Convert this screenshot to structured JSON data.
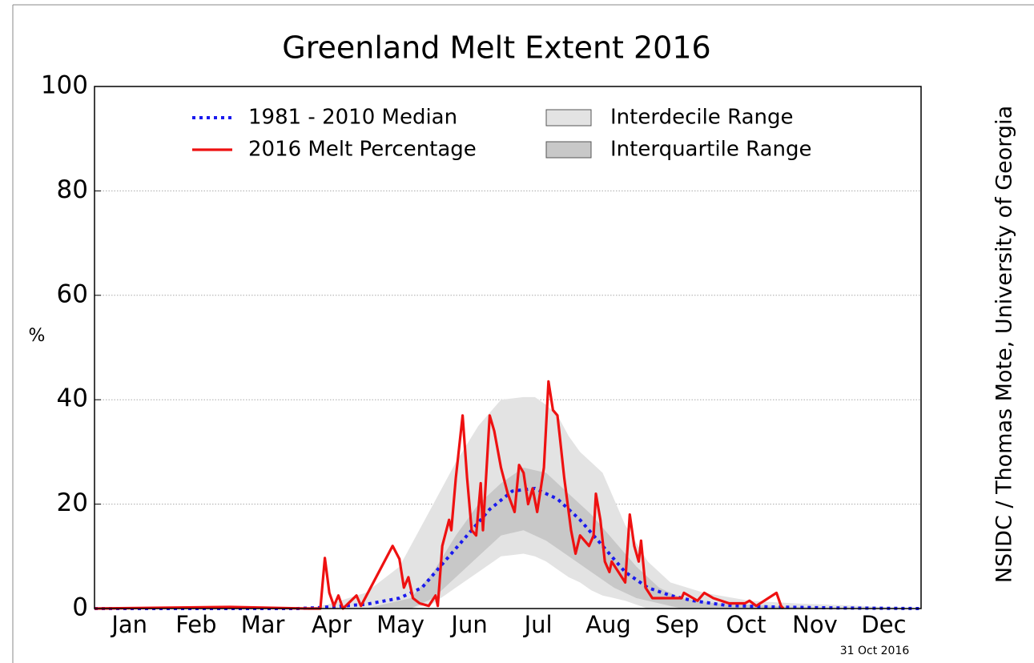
{
  "chart_data": {
    "type": "line",
    "title": "Greenland Melt Extent 2016",
    "y_label": "%",
    "credit": "NSIDC / Thomas Mote, University of Georgia",
    "date_note": "31 Oct 2016",
    "xlim": [
      0,
      366
    ],
    "xticks": [
      {
        "value": 15.5,
        "label": "Jan"
      },
      {
        "value": 45,
        "label": "Feb"
      },
      {
        "value": 74.5,
        "label": "Mar"
      },
      {
        "value": 105,
        "label": "Apr"
      },
      {
        "value": 135.5,
        "label": "May"
      },
      {
        "value": 166,
        "label": "Jun"
      },
      {
        "value": 196.5,
        "label": "Jul"
      },
      {
        "value": 227.5,
        "label": "Aug"
      },
      {
        "value": 258,
        "label": "Sep"
      },
      {
        "value": 288.5,
        "label": "Oct"
      },
      {
        "value": 319,
        "label": "Nov"
      },
      {
        "value": 349.5,
        "label": "Dec"
      }
    ],
    "ylim": [
      0,
      100
    ],
    "yticks": [
      0,
      20,
      40,
      60,
      80,
      100
    ],
    "grid": true,
    "series": [
      {
        "name": "Interdecile Range",
        "kind": "band",
        "color": "#e3e3e3",
        "x": [
          0,
          95,
          105,
          120,
          135,
          140,
          150,
          160,
          170,
          180,
          190,
          195,
          200,
          205,
          210,
          215,
          220,
          225,
          235,
          245,
          255,
          270,
          290,
          310,
          340,
          366
        ],
        "values": [
          0,
          0,
          1,
          3,
          8,
          12,
          20,
          28,
          35,
          40,
          40.5,
          40.5,
          39,
          37,
          33,
          30,
          28,
          26,
          16,
          9,
          5,
          3,
          1.5,
          1,
          0.5,
          0
        ],
        "lower": [
          0,
          0,
          0,
          0,
          0,
          0,
          1,
          4,
          7,
          10,
          10.5,
          10,
          9,
          7.5,
          6,
          5,
          3.5,
          2.5,
          1.5,
          0,
          0,
          0,
          0,
          0,
          0,
          0
        ]
      },
      {
        "name": "Interquartile Range",
        "kind": "band",
        "color": "#c8c8c8",
        "x": [
          0,
          120,
          140,
          150,
          160,
          170,
          180,
          190,
          200,
          210,
          220,
          230,
          240,
          250,
          260,
          275,
          300,
          330,
          366
        ],
        "values": [
          0,
          0,
          2,
          7,
          14,
          20,
          24,
          27,
          26,
          22,
          18,
          13,
          8,
          4,
          2,
          1,
          0.5,
          0,
          0
        ],
        "lower": [
          0,
          0,
          0,
          2,
          6,
          10,
          14,
          15,
          13,
          10,
          7,
          4,
          2,
          1,
          0,
          0,
          0,
          0,
          0
        ]
      },
      {
        "name": "1981 - 2010 Median",
        "kind": "dotted",
        "color": "#1a1aee",
        "x": [
          0,
          90,
          100,
          120,
          135,
          145,
          155,
          165,
          175,
          185,
          195,
          205,
          215,
          225,
          235,
          245,
          255,
          265,
          280,
          300,
          330,
          366
        ],
        "values": [
          0,
          0,
          0.2,
          0.8,
          2,
          4,
          9,
          14,
          19,
          22.5,
          23,
          21,
          17,
          12,
          7,
          4,
          2.5,
          1.5,
          0.6,
          0.3,
          0.1,
          0
        ]
      },
      {
        "name": "2016 Melt Percentage",
        "kind": "solid",
        "color": "#ee1111",
        "x": [
          0,
          60,
          95,
          100,
          102,
          104,
          106,
          108,
          110,
          116,
          118,
          132,
          135,
          137,
          139,
          141,
          144,
          148,
          151,
          152,
          154,
          157,
          158,
          160,
          163,
          165,
          167,
          169,
          171,
          172,
          175,
          177,
          180,
          183,
          186,
          188,
          190,
          192,
          194,
          196,
          199,
          201,
          203,
          205,
          206,
          208,
          211,
          213,
          215,
          219,
          221,
          222,
          224,
          226,
          228,
          229,
          232,
          235,
          237,
          239,
          241,
          242,
          244,
          247,
          260,
          261,
          267,
          270,
          274,
          281,
          288,
          290,
          293,
          302,
          304,
          305
        ],
        "values": [
          0,
          0.3,
          0,
          0,
          9.7,
          3,
          0.5,
          2.5,
          0,
          2.5,
          0.5,
          12,
          9.5,
          4,
          6,
          2,
          1,
          0.5,
          2.5,
          0.5,
          12,
          17,
          15,
          25,
          37,
          25,
          15,
          14,
          24,
          15,
          37,
          34,
          27,
          22,
          18.5,
          27.5,
          26,
          20,
          23,
          18.5,
          27,
          43.5,
          38,
          37,
          33,
          25,
          15,
          10.5,
          14,
          12,
          14,
          22,
          17,
          9,
          7,
          9,
          7,
          5,
          18,
          12,
          9,
          13,
          4,
          2,
          2,
          3,
          1.5,
          3,
          2,
          1,
          1,
          1.5,
          0.5,
          3,
          0.5,
          0
        ]
      }
    ]
  }
}
